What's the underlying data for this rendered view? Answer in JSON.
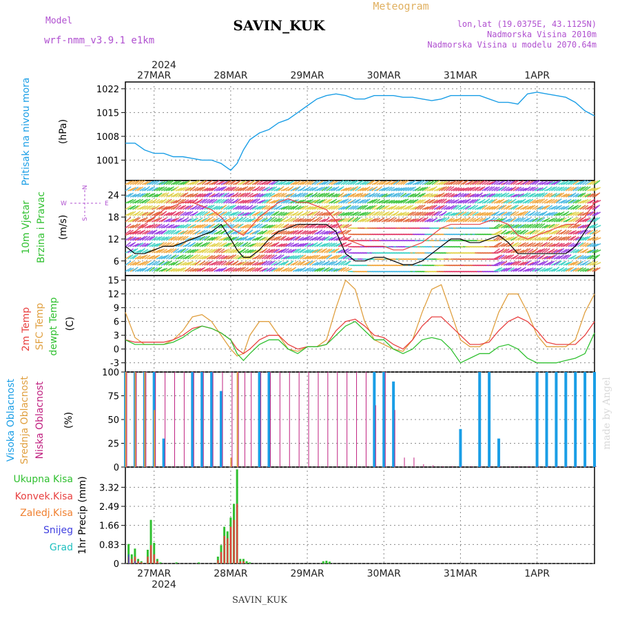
{
  "header": {
    "model_label": "Model",
    "model_name": "wrf-nmm_v3.9.1 e1km",
    "station": "SAVIN_KUK",
    "meteogram": "Meteogram",
    "lonlat": "lon,lat (19.0375E, 43.1125N)",
    "elevation": "Nadmorska Visina 2010m",
    "model_elevation": "Nadmorska Visina u modelu 2070.64m",
    "footer_station": "SAVIN_KUK",
    "watermark": "made by Angel"
  },
  "x_axis": {
    "year": "2024",
    "start_hour": 15,
    "end_hour": 162,
    "day_labels": [
      {
        "label": "27MAR",
        "hour": 24
      },
      {
        "label": "28MAR",
        "hour": 48
      },
      {
        "label": "29MAR",
        "hour": 72
      },
      {
        "label": "30MAR",
        "hour": 96
      },
      {
        "label": "31MAR",
        "hour": 120
      },
      {
        "label": "1APR",
        "hour": 144
      }
    ]
  },
  "colors": {
    "pressure": "#1a9ee6",
    "t2m": "#e84040",
    "sfc": "#e0a040",
    "dewpt": "#30c030",
    "cloud_high": "#1a9ee6",
    "cloud_mid": "#e0a040",
    "cloud_low": "#c02080",
    "precip_total": "#30c030",
    "precip_conv": "#e84040",
    "precip_frz": "#f08030",
    "precip_snow": "#4040e0",
    "precip_grad": "#20c0c0",
    "wind_line": "#000000",
    "gust_line": "#e84040"
  },
  "panels": {
    "pressure": {
      "ylabel_1": "Pritisak na nivou mora",
      "ylabel_2": "(hPa)",
      "ticks": [
        "1001",
        "1008",
        "1015",
        "1022"
      ],
      "ylim": [
        995,
        1024
      ]
    },
    "wind": {
      "ylabel_1": "10m Vjetar",
      "ylabel_2": "Brzina i Pravac",
      "ylabel_3": "(m/s)",
      "ticks": [
        "6",
        "12",
        "18",
        "24"
      ],
      "ylim": [
        2,
        28
      ],
      "compass_n": "N",
      "compass_s": "S",
      "compass_w": "W",
      "compass_e": "E"
    },
    "temperature": {
      "ylabel_1": "2m Temp",
      "ylabel_2": "SFC Temp",
      "ylabel_3": "dewpt Temp",
      "ylabel_4": "(C)",
      "ticks": [
        "-3",
        "0",
        "3",
        "6",
        "9",
        "12",
        "15"
      ],
      "ylim": [
        -5,
        16
      ]
    },
    "cloud": {
      "ylabel_1": "Visoka Oblacnost",
      "ylabel_2": "Srednja Oblacnost",
      "ylabel_3": "Niska Oblacnost",
      "ylabel_4": "(%)",
      "ticks": [
        "0",
        "25",
        "50",
        "75",
        "100"
      ],
      "ylim": [
        0,
        100
      ]
    },
    "precip": {
      "legend_total": "Ukupna Kisa",
      "legend_conv": "Konvek.Kisa",
      "legend_frz": "Zaledj.Kisa",
      "legend_snow": "Snijeg",
      "legend_grad": "Grad",
      "ylabel": "1hr Precip (mm)",
      "ticks": [
        "0",
        "0.83",
        "1.66",
        "2.49",
        "3.32"
      ],
      "ylim": [
        0,
        4.2
      ]
    }
  },
  "chart_data": [
    {
      "type": "line",
      "title": "Pritisak na nivou mora",
      "ylabel": "(hPa)",
      "x": [
        15,
        18,
        21,
        24,
        27,
        30,
        33,
        36,
        39,
        42,
        45,
        48,
        50,
        52,
        54,
        57,
        60,
        63,
        66,
        69,
        72,
        75,
        78,
        81,
        84,
        87,
        90,
        93,
        96,
        99,
        102,
        105,
        108,
        111,
        114,
        117,
        120,
        123,
        126,
        129,
        132,
        135,
        138,
        141,
        144,
        147,
        150,
        153,
        156,
        159,
        162
      ],
      "series": [
        {
          "values": [
            1006,
            1006,
            1004,
            1003,
            1003,
            1002,
            1002,
            1001.5,
            1001,
            1001,
            1000,
            998,
            1000,
            1004,
            1007,
            1009,
            1010,
            1012,
            1013,
            1015,
            1017,
            1019,
            1020,
            1020.5,
            1020,
            1019,
            1019,
            1020,
            1020,
            1020,
            1019.5,
            1019.5,
            1019,
            1018.5,
            1019,
            1020,
            1020,
            1020,
            1020,
            1019,
            1018,
            1018,
            1017.5,
            1020.5,
            1021,
            1020.5,
            1020,
            1019.5,
            1018,
            1015.5,
            1014
          ]
        }
      ]
    },
    {
      "type": "line",
      "title": "10m Vjetar Brzina i Pravac",
      "ylabel": "(m/s)",
      "x": [
        15,
        18,
        21,
        24,
        27,
        30,
        33,
        36,
        39,
        42,
        45,
        48,
        50,
        52,
        54,
        57,
        60,
        63,
        66,
        69,
        72,
        75,
        78,
        81,
        84,
        87,
        90,
        93,
        96,
        99,
        102,
        105,
        108,
        111,
        114,
        117,
        120,
        123,
        126,
        129,
        132,
        135,
        138,
        141,
        144,
        147,
        150,
        153,
        156,
        159,
        162
      ],
      "series": [
        {
          "values": [
            10,
            8,
            8,
            9,
            10,
            10,
            11,
            12,
            13,
            14,
            16,
            12,
            9,
            7,
            7,
            9,
            12,
            14,
            15,
            16,
            16,
            16,
            16,
            14,
            8,
            6,
            6,
            7,
            7,
            6,
            5,
            5,
            6,
            8,
            10,
            12,
            12,
            11,
            11,
            12,
            13,
            11,
            8,
            8,
            8,
            8,
            8,
            8,
            10,
            14,
            18
          ]
        },
        {
          "values": [
            13,
            14,
            16,
            18,
            20,
            21,
            22,
            22,
            21,
            20,
            18,
            15,
            14,
            13,
            15,
            18,
            20,
            22,
            23,
            22,
            22,
            21,
            20,
            17,
            12,
            11,
            10,
            10,
            10,
            9,
            9,
            10,
            11,
            13,
            15,
            16,
            16,
            16,
            16,
            17,
            17,
            16,
            13,
            12,
            13,
            14,
            15,
            16,
            16,
            18,
            22
          ]
        }
      ]
    },
    {
      "type": "line",
      "title": "2m Temp / SFC Temp / dewpt Temp",
      "ylabel": "(C)",
      "x": [
        15,
        18,
        21,
        24,
        27,
        30,
        33,
        36,
        39,
        42,
        45,
        48,
        50,
        52,
        54,
        57,
        60,
        63,
        66,
        69,
        72,
        75,
        78,
        81,
        84,
        87,
        90,
        93,
        96,
        99,
        102,
        105,
        108,
        111,
        114,
        117,
        120,
        123,
        126,
        129,
        132,
        135,
        138,
        141,
        144,
        147,
        150,
        153,
        156,
        159,
        162
      ],
      "series": [
        {
          "name": "2m Temp",
          "values": [
            2,
            1.5,
            1.5,
            1.5,
            1.5,
            2,
            3,
            4.5,
            5,
            4.5,
            3.5,
            2,
            0,
            -1,
            0,
            2,
            3,
            3,
            1,
            0,
            0.5,
            0.5,
            1,
            4,
            6,
            6.5,
            5,
            3,
            2.5,
            1,
            0,
            2,
            5,
            7,
            7,
            5,
            3,
            1,
            1,
            1.5,
            4,
            6,
            7,
            6,
            4,
            1.5,
            1,
            1,
            1,
            3,
            6
          ]
        },
        {
          "name": "SFC Temp",
          "values": [
            8,
            2.5,
            1,
            1,
            1,
            2,
            4,
            7,
            7.5,
            6,
            3,
            0,
            -1.5,
            -1,
            3,
            6,
            6,
            3,
            0,
            -0.5,
            0.5,
            0.5,
            2,
            9,
            15,
            13,
            6,
            2,
            1,
            0,
            -0.5,
            2,
            8,
            13,
            14,
            8,
            2,
            0.5,
            0.5,
            2,
            8,
            12,
            12,
            8,
            3,
            0.5,
            0.5,
            0.5,
            2,
            8,
            12
          ]
        },
        {
          "name": "dewpt Temp",
          "values": [
            2,
            1,
            1,
            1,
            1,
            1.5,
            2.5,
            4,
            5,
            4.5,
            3.5,
            2,
            -1,
            -2.5,
            -1,
            1,
            2,
            2,
            0,
            -1,
            0.5,
            0.5,
            1,
            3,
            5,
            6,
            4,
            2,
            2,
            0,
            -1,
            0,
            2,
            2.5,
            2,
            0,
            -3,
            -2,
            -1,
            -1,
            0.5,
            1,
            0,
            -2,
            -3,
            -3,
            -3,
            -2.5,
            -2,
            -1,
            3.5
          ]
        }
      ]
    },
    {
      "type": "bar",
      "title": "Visoka / Srednja / Niska Oblacnost",
      "ylabel": "(%)",
      "x": [
        15,
        18,
        21,
        24,
        27,
        30,
        33,
        36,
        39,
        42,
        45,
        48,
        50,
        52,
        54,
        57,
        60,
        63,
        66,
        69,
        72,
        75,
        78,
        81,
        84,
        87,
        90,
        93,
        96,
        99,
        102,
        105,
        108,
        111,
        114,
        117,
        120,
        123,
        126,
        129,
        132,
        135,
        138,
        141,
        144,
        147,
        150,
        153,
        156,
        159,
        162
      ],
      "series": [
        {
          "name": "Visoka Oblacnost",
          "values": [
            100,
            100,
            100,
            100,
            30,
            0,
            0,
            100,
            100,
            100,
            80,
            0,
            0,
            0,
            0,
            100,
            100,
            0,
            0,
            0,
            0,
            0,
            0,
            0,
            0,
            0,
            0,
            100,
            100,
            90,
            0,
            0,
            0,
            0,
            0,
            0,
            40,
            0,
            100,
            100,
            30,
            0,
            0,
            0,
            100,
            100,
            100,
            100,
            100,
            100,
            100
          ]
        },
        {
          "name": "Srednja Oblacnost",
          "values": [
            100,
            100,
            100,
            60,
            0,
            0,
            0,
            0,
            0,
            0,
            0,
            10,
            100,
            0,
            0,
            0,
            0,
            0,
            0,
            0,
            0,
            0,
            0,
            0,
            0,
            0,
            0,
            0,
            0,
            0,
            0,
            0,
            0,
            0,
            0,
            0,
            0,
            0,
            0,
            0,
            0,
            0,
            0,
            0,
            0,
            0,
            0,
            0,
            0,
            0,
            0
          ]
        },
        {
          "name": "Niska Oblacnost",
          "values": [
            100,
            100,
            100,
            100,
            100,
            100,
            100,
            100,
            100,
            100,
            100,
            100,
            100,
            100,
            100,
            100,
            100,
            100,
            100,
            100,
            100,
            100,
            100,
            100,
            100,
            100,
            100,
            65,
            100,
            60,
            10,
            10,
            3,
            2,
            1,
            1,
            1,
            1,
            1,
            1,
            1,
            1,
            1,
            1,
            1,
            1,
            1,
            1,
            1,
            1,
            1
          ]
        }
      ]
    },
    {
      "type": "bar",
      "title": "1hr Precip",
      "ylabel": "1hr Precip (mm)",
      "x": [
        16,
        17,
        18,
        19,
        20,
        22,
        23,
        24,
        25,
        26,
        31,
        38,
        44,
        45,
        46,
        47,
        48,
        49,
        50,
        51,
        52,
        53,
        54,
        77,
        78,
        79
      ],
      "series": [
        {
          "name": "Ukupna Kisa",
          "values": [
            0.85,
            0.4,
            0.65,
            0.2,
            0.1,
            0.6,
            1.9,
            0.9,
            0.2,
            0.05,
            0.05,
            0.05,
            0.3,
            0.8,
            1.6,
            1.4,
            2.0,
            2.6,
            4.1,
            0.2,
            0.2,
            0.1,
            0.05,
            0.1,
            0.12,
            0.08
          ]
        },
        {
          "name": "Konvek.Kisa",
          "values": [
            0.3,
            0.2,
            0.3,
            0.1,
            0.05,
            0.3,
            0.8,
            0.4,
            0.1,
            0,
            0,
            0,
            0.15,
            0.5,
            1.2,
            1.1,
            1.6,
            1.9,
            2.6,
            0.1,
            0.1,
            0,
            0,
            0,
            0,
            0
          ]
        },
        {
          "name": "Snijeg",
          "values": [
            0.4,
            0,
            0.1,
            0,
            0,
            0,
            0,
            0,
            0,
            0,
            0,
            0,
            0,
            0,
            0,
            0,
            0,
            0,
            0,
            0,
            0,
            0,
            0,
            0,
            0,
            0
          ]
        }
      ]
    }
  ]
}
